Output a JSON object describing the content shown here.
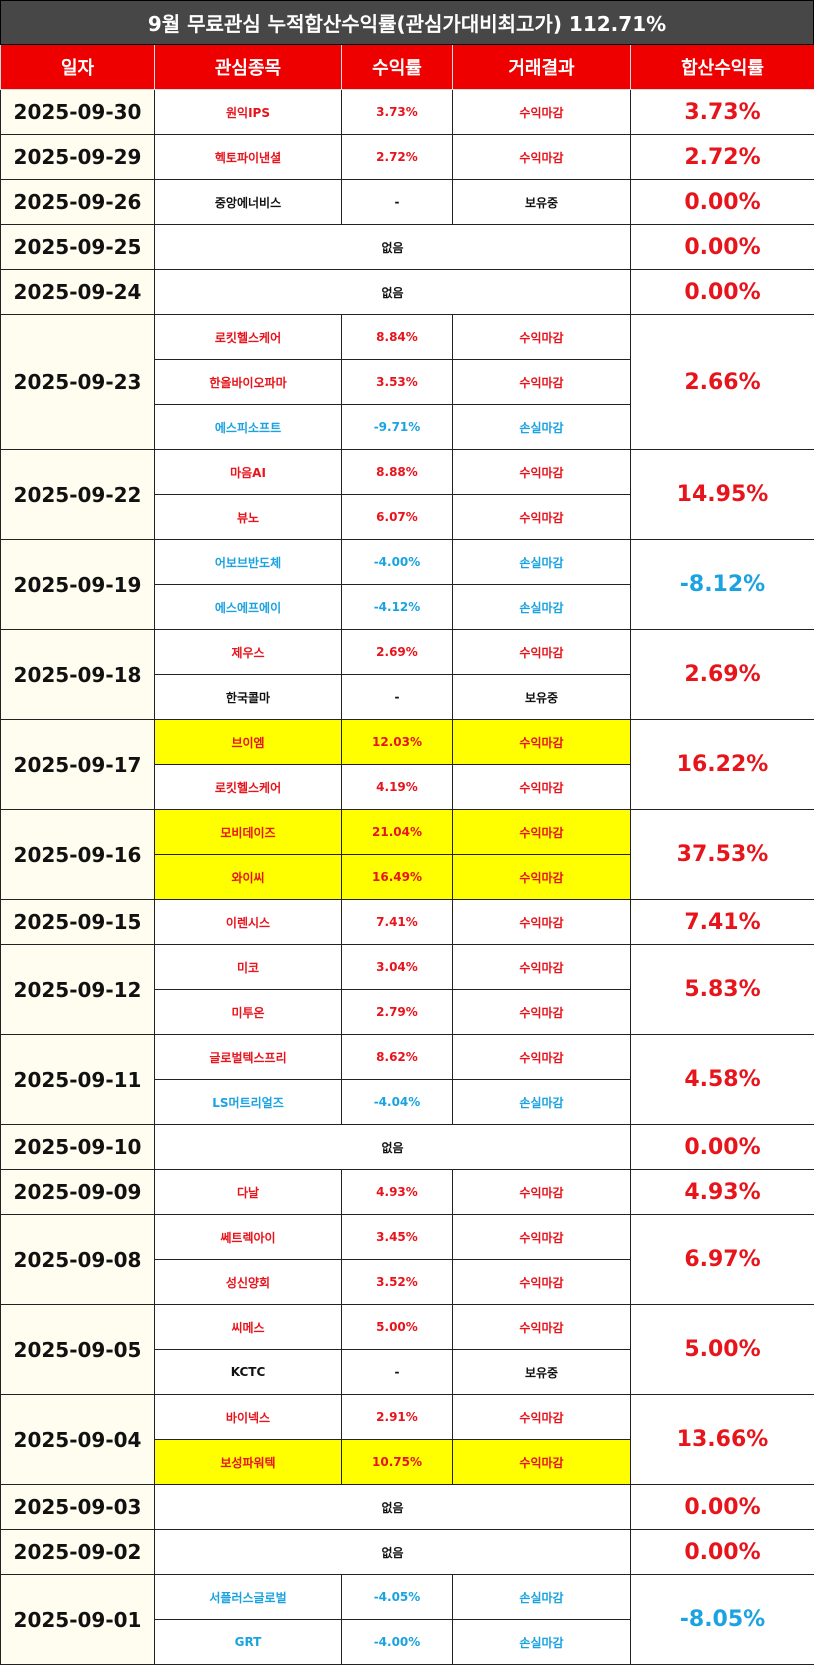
{
  "title": "9월 무료관심 누적합산수익률(관심가대비최고가) 112.71%",
  "headers": [
    "일자",
    "관심종목",
    "수익률",
    "거래결과",
    "합산수익률"
  ],
  "rows": [
    {
      "date": "2025-09-30",
      "total": "3.73%",
      "total_color": "#e8141b",
      "items": [
        {
          "stock": "원익IPS",
          "return": "3.73%",
          "result": "수익마감",
          "color": "#e8141b"
        }
      ]
    },
    {
      "date": "2025-09-29",
      "total": "2.72%",
      "total_color": "#e8141b",
      "items": [
        {
          "stock": "헥토파이낸셜",
          "return": "2.72%",
          "result": "수익마감",
          "color": "#e8141b"
        }
      ]
    },
    {
      "date": "2025-09-26",
      "total": "0.00%",
      "total_color": "#e8141b",
      "items": [
        {
          "stock": "중앙에너비스",
          "return": "-",
          "result": "보유중",
          "color": "#111111"
        }
      ]
    },
    {
      "date": "2025-09-25",
      "total": "0.00%",
      "total_color": "#e8141b",
      "note": "없음"
    },
    {
      "date": "2025-09-24",
      "total": "0.00%",
      "total_color": "#e8141b",
      "note": "없음"
    },
    {
      "date": "2025-09-23",
      "total": "2.66%",
      "total_color": "#e8141b",
      "items": [
        {
          "stock": "로킷헬스케어",
          "return": "8.84%",
          "result": "수익마감",
          "color": "#e8141b"
        },
        {
          "stock": "한올바이오파마",
          "return": "3.53%",
          "result": "수익마감",
          "color": "#e8141b"
        },
        {
          "stock": "에스피소프트",
          "return": "-9.71%",
          "result": "손실마감",
          "color": "#1aa3e0"
        }
      ]
    },
    {
      "date": "2025-09-22",
      "total": "14.95%",
      "total_color": "#e8141b",
      "items": [
        {
          "stock": "마음AI",
          "return": "8.88%",
          "result": "수익마감",
          "color": "#e8141b"
        },
        {
          "stock": "뷰노",
          "return": "6.07%",
          "result": "수익마감",
          "color": "#e8141b"
        }
      ]
    },
    {
      "date": "2025-09-19",
      "total": "-8.12%",
      "total_color": "#1aa3e0",
      "items": [
        {
          "stock": "어보브반도체",
          "return": "-4.00%",
          "result": "손실마감",
          "color": "#1aa3e0"
        },
        {
          "stock": "에스에프에이",
          "return": "-4.12%",
          "result": "손실마감",
          "color": "#1aa3e0"
        }
      ]
    },
    {
      "date": "2025-09-18",
      "total": "2.69%",
      "total_color": "#e8141b",
      "items": [
        {
          "stock": "제우스",
          "return": "2.69%",
          "result": "수익마감",
          "color": "#e8141b"
        },
        {
          "stock": "한국콜마",
          "return": "-",
          "result": "보유중",
          "color": "#111111"
        }
      ]
    },
    {
      "date": "2025-09-17",
      "total": "16.22%",
      "total_color": "#e8141b",
      "items": [
        {
          "stock": "브이엠",
          "return": "12.03%",
          "result": "수익마감",
          "color": "#e8141b",
          "highlight": "#ffff00"
        },
        {
          "stock": "로킷헬스케어",
          "return": "4.19%",
          "result": "수익마감",
          "color": "#e8141b"
        }
      ]
    },
    {
      "date": "2025-09-16",
      "total": "37.53%",
      "total_color": "#e8141b",
      "items": [
        {
          "stock": "모비데이즈",
          "return": "21.04%",
          "result": "수익마감",
          "color": "#e8141b",
          "highlight": "#ffff00"
        },
        {
          "stock": "와이씨",
          "return": "16.49%",
          "result": "수익마감",
          "color": "#e8141b",
          "highlight": "#ffff00"
        }
      ]
    },
    {
      "date": "2025-09-15",
      "total": "7.41%",
      "total_color": "#e8141b",
      "items": [
        {
          "stock": "이렌시스",
          "return": "7.41%",
          "result": "수익마감",
          "color": "#e8141b"
        }
      ]
    },
    {
      "date": "2025-09-12",
      "total": "5.83%",
      "total_color": "#e8141b",
      "items": [
        {
          "stock": "미코",
          "return": "3.04%",
          "result": "수익마감",
          "color": "#e8141b"
        },
        {
          "stock": "미투온",
          "return": "2.79%",
          "result": "수익마감",
          "color": "#e8141b"
        }
      ]
    },
    {
      "date": "2025-09-11",
      "total": "4.58%",
      "total_color": "#e8141b",
      "items": [
        {
          "stock": "글로벌텍스프리",
          "return": "8.62%",
          "result": "수익마감",
          "color": "#e8141b"
        },
        {
          "stock": "LS머트리얼즈",
          "return": "-4.04%",
          "result": "손실마감",
          "color": "#1aa3e0"
        }
      ]
    },
    {
      "date": "2025-09-10",
      "total": "0.00%",
      "total_color": "#e8141b",
      "note": "없음"
    },
    {
      "date": "2025-09-09",
      "total": "4.93%",
      "total_color": "#e8141b",
      "items": [
        {
          "stock": "다날",
          "return": "4.93%",
          "result": "수익마감",
          "color": "#e8141b"
        }
      ]
    },
    {
      "date": "2025-09-08",
      "total": "6.97%",
      "total_color": "#e8141b",
      "items": [
        {
          "stock": "쎄트렉아이",
          "return": "3.45%",
          "result": "수익마감",
          "color": "#e8141b"
        },
        {
          "stock": "성신양회",
          "return": "3.52%",
          "result": "수익마감",
          "color": "#e8141b"
        }
      ]
    },
    {
      "date": "2025-09-05",
      "total": "5.00%",
      "total_color": "#e8141b",
      "items": [
        {
          "stock": "씨메스",
          "return": "5.00%",
          "result": "수익마감",
          "color": "#e8141b"
        },
        {
          "stock": "KCTC",
          "return": "-",
          "result": "보유중",
          "color": "#111111"
        }
      ]
    },
    {
      "date": "2025-09-04",
      "total": "13.66%",
      "total_color": "#e8141b",
      "items": [
        {
          "stock": "바이넥스",
          "return": "2.91%",
          "result": "수익마감",
          "color": "#e8141b"
        },
        {
          "stock": "보성파워텍",
          "return": "10.75%",
          "result": "수익마감",
          "color": "#e8141b",
          "highlight": "#ffff00"
        }
      ]
    },
    {
      "date": "2025-09-03",
      "total": "0.00%",
      "total_color": "#e8141b",
      "note": "없음"
    },
    {
      "date": "2025-09-02",
      "total": "0.00%",
      "total_color": "#e8141b",
      "note": "없음"
    },
    {
      "date": "2025-09-01",
      "total": "-8.05%",
      "total_color": "#1aa3e0",
      "items": [
        {
          "stock": "서플러스글로벌",
          "return": "-4.05%",
          "result": "손실마감",
          "color": "#1aa3e0"
        },
        {
          "stock": "GRT",
          "return": "-4.00%",
          "result": "손실마감",
          "color": "#1aa3e0"
        }
      ]
    }
  ]
}
